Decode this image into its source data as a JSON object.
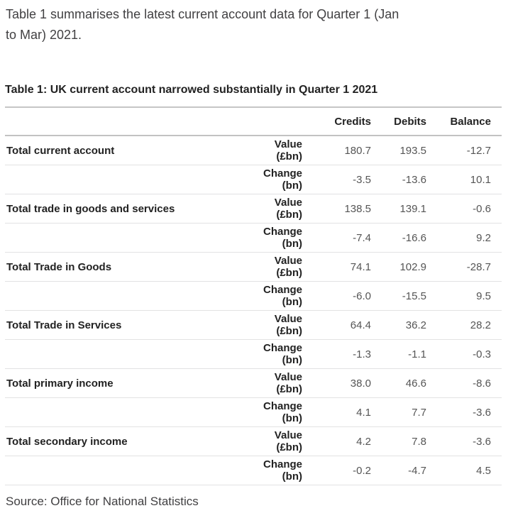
{
  "intro": {
    "text": "Table 1 summarises the latest current account data for Quarter 1 (Jan\nto Mar) 2021."
  },
  "table": {
    "title": "Table 1: UK current account narrowed substantially in Quarter 1 2021",
    "columns": [
      "Credits",
      "Debits",
      "Balance"
    ],
    "value_label": "Value (£bn)",
    "change_label": "Change (bn)",
    "rows": [
      {
        "label": "Total current account",
        "value": [
          "180.7",
          "193.5",
          "-12.7"
        ],
        "change": [
          "-3.5",
          "-13.6",
          "10.1"
        ]
      },
      {
        "label": "Total trade in goods and services",
        "value": [
          "138.5",
          "139.1",
          "-0.6"
        ],
        "change": [
          "-7.4",
          "-16.6",
          "9.2"
        ]
      },
      {
        "label": "Total Trade in Goods",
        "value": [
          "74.1",
          "102.9",
          "-28.7"
        ],
        "change": [
          "-6.0",
          "-15.5",
          "9.5"
        ]
      },
      {
        "label": "Total Trade in Services",
        "value": [
          "64.4",
          "36.2",
          "28.2"
        ],
        "change": [
          "-1.3",
          "-1.1",
          "-0.3"
        ]
      },
      {
        "label": "Total primary income",
        "value": [
          "38.0",
          "46.6",
          "-8.6"
        ],
        "change": [
          "4.1",
          "7.7",
          "-3.6"
        ]
      },
      {
        "label": "Total secondary income",
        "value": [
          "4.2",
          "7.8",
          "-3.6"
        ],
        "change": [
          "-0.2",
          "-4.7",
          "4.5"
        ]
      }
    ]
  },
  "source": {
    "text": "Source: Office for National Statistics"
  },
  "colors": {
    "heading_text": "#222222",
    "body_text": "#414042",
    "number_text": "#555555",
    "strong_rule": "#c6c6c6",
    "light_rule": "#e2e2e3"
  }
}
